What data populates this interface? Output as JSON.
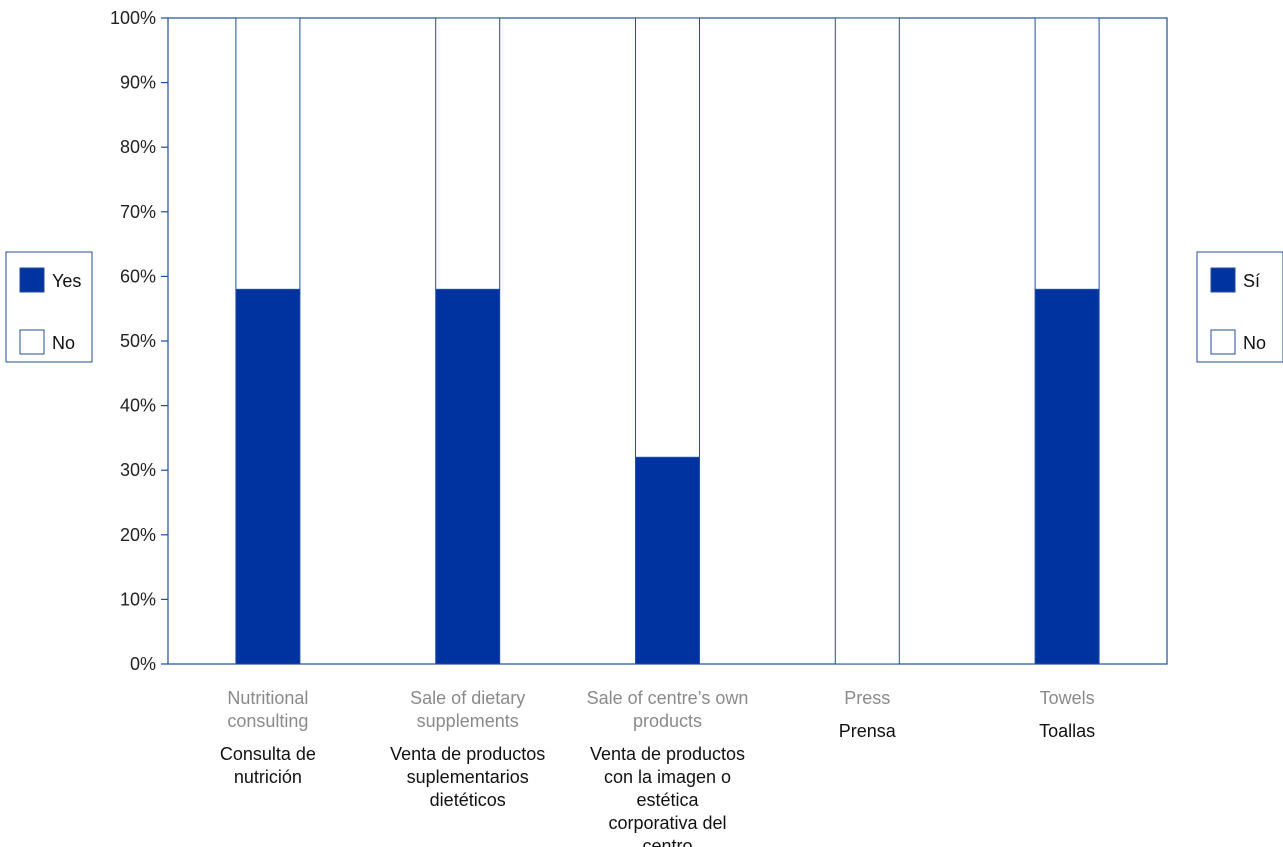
{
  "chart_data": {
    "type": "bar",
    "stacked": true,
    "percent": true,
    "categories": [
      "Nutritional consulting",
      "Sale of dietary supplements",
      "Sale of centre’s own products",
      "Press",
      "Towels"
    ],
    "categories_translation": [
      "Consulta de nutrición",
      "Venta de productos suplementarios dietéticos",
      "Venta de productos con la imagen o estética corporativa del centro",
      "Prensa",
      "Toallas"
    ],
    "series": [
      {
        "name": "Yes",
        "name_translation": "Sí",
        "color": "#0033a0",
        "values": [
          58,
          58,
          32,
          0,
          58
        ]
      },
      {
        "name": "No",
        "name_translation": "No",
        "color": "#ffffff",
        "values": [
          42,
          42,
          68,
          100,
          42
        ]
      }
    ],
    "ylim": [
      0,
      100
    ],
    "yticks": [
      "0%",
      "10%",
      "20%",
      "30%",
      "40%",
      "50%",
      "60%",
      "70%",
      "80%",
      "90%",
      "100%"
    ],
    "title": "",
    "xlabel": "",
    "ylabel": "",
    "grid": false,
    "legend_left": [
      "Yes",
      "No"
    ],
    "legend_right": [
      "Sí",
      "No"
    ],
    "frame_color": "#1f4e9c"
  }
}
